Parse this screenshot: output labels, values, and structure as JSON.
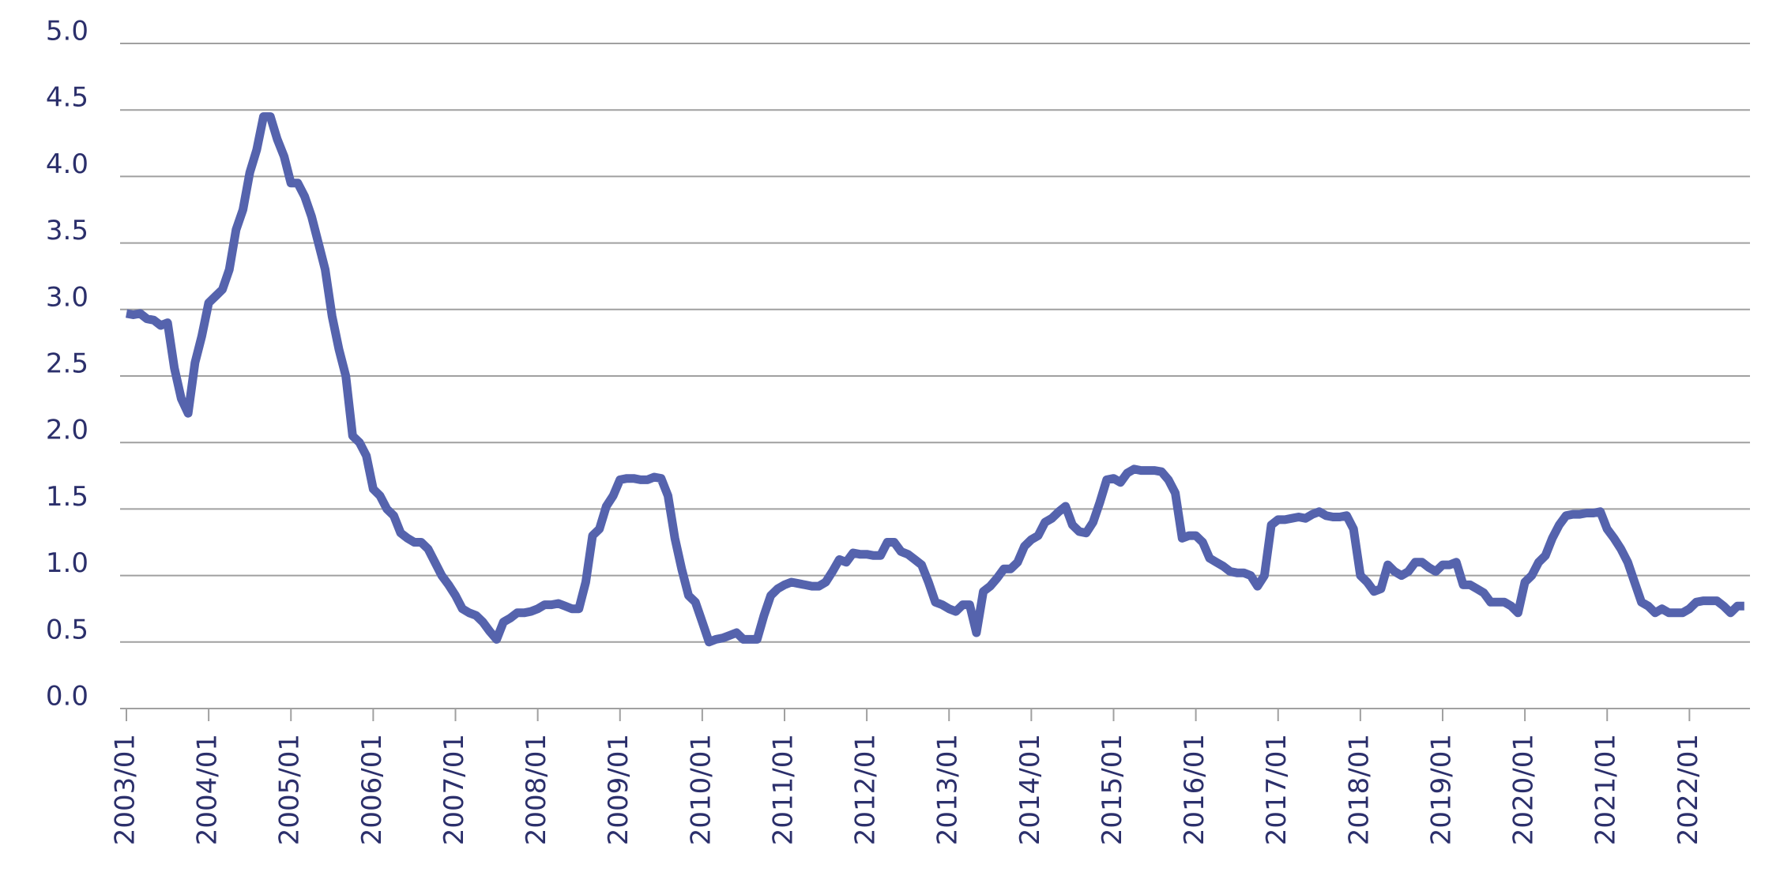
{
  "chart_data": {
    "type": "line",
    "categories": [
      "2003/01",
      null,
      null,
      null,
      null,
      null,
      null,
      null,
      null,
      null,
      null,
      null,
      "2004/01",
      null,
      null,
      null,
      null,
      null,
      null,
      null,
      null,
      null,
      null,
      null,
      "2005/01",
      null,
      null,
      null,
      null,
      null,
      null,
      null,
      null,
      null,
      null,
      null,
      "2006/01",
      null,
      null,
      null,
      null,
      null,
      null,
      null,
      null,
      null,
      null,
      null,
      "2007/01",
      null,
      null,
      null,
      null,
      null,
      null,
      null,
      null,
      null,
      null,
      null,
      "2008/01",
      null,
      null,
      null,
      null,
      null,
      null,
      null,
      null,
      null,
      null,
      null,
      "2009/01",
      null,
      null,
      null,
      null,
      null,
      null,
      null,
      null,
      null,
      null,
      null,
      "2010/01",
      null,
      null,
      null,
      null,
      null,
      null,
      null,
      null,
      null,
      null,
      null,
      "2011/01",
      null,
      null,
      null,
      null,
      null,
      null,
      null,
      null,
      null,
      null,
      null,
      "2012/01",
      null,
      null,
      null,
      null,
      null,
      null,
      null,
      null,
      null,
      null,
      null,
      "2013/01",
      null,
      null,
      null,
      null,
      null,
      null,
      null,
      null,
      null,
      null,
      null,
      "2014/01",
      null,
      null,
      null,
      null,
      null,
      null,
      null,
      null,
      null,
      null,
      null,
      "2015/01",
      null,
      null,
      null,
      null,
      null,
      null,
      null,
      null,
      null,
      null,
      null,
      "2016/01",
      null,
      null,
      null,
      null,
      null,
      null,
      null,
      null,
      null,
      null,
      null,
      "2017/01",
      null,
      null,
      null,
      null,
      null,
      null,
      null,
      null,
      null,
      null,
      null,
      "2018/01",
      null,
      null,
      null,
      null,
      null,
      null,
      null,
      null,
      null,
      null,
      null,
      "2019/01",
      null,
      null,
      null,
      null,
      null,
      null,
      null,
      null,
      null,
      null,
      null,
      "2020/01",
      null,
      null,
      null,
      null,
      null,
      null,
      null,
      null,
      null,
      null,
      null,
      "2021/01",
      null,
      null,
      null,
      null,
      null,
      null,
      null,
      null,
      null,
      null,
      null,
      "2022/01",
      null,
      null,
      null,
      null,
      null,
      null,
      null,
      null
    ],
    "values": [
      2.97,
      2.96,
      2.97,
      2.93,
      2.92,
      2.88,
      2.9,
      2.56,
      2.33,
      2.22,
      2.6,
      2.8,
      3.05,
      3.1,
      3.15,
      3.3,
      3.6,
      3.75,
      4.03,
      4.2,
      4.45,
      4.45,
      4.28,
      4.15,
      3.95,
      3.95,
      3.85,
      3.7,
      3.5,
      3.3,
      2.95,
      2.7,
      2.5,
      2.05,
      2.0,
      1.9,
      1.65,
      1.6,
      1.5,
      1.45,
      1.32,
      1.28,
      1.25,
      1.25,
      1.2,
      1.1,
      1.0,
      0.93,
      0.85,
      0.75,
      0.72,
      0.7,
      0.65,
      0.58,
      0.52,
      0.65,
      0.68,
      0.72,
      0.72,
      0.73,
      0.75,
      0.78,
      0.78,
      0.79,
      0.77,
      0.75,
      0.75,
      0.95,
      1.3,
      1.35,
      1.52,
      1.6,
      1.72,
      1.73,
      1.73,
      1.72,
      1.72,
      1.74,
      1.73,
      1.6,
      1.28,
      1.05,
      0.85,
      0.8,
      0.65,
      0.5,
      0.52,
      0.53,
      0.55,
      0.57,
      0.52,
      0.52,
      0.52,
      0.7,
      0.85,
      0.9,
      0.93,
      0.95,
      0.94,
      0.93,
      0.92,
      0.92,
      0.95,
      1.03,
      1.12,
      1.1,
      1.17,
      1.16,
      1.16,
      1.15,
      1.15,
      1.25,
      1.25,
      1.18,
      1.16,
      1.12,
      1.08,
      0.95,
      0.8,
      0.78,
      0.75,
      0.73,
      0.78,
      0.78,
      0.57,
      0.88,
      0.92,
      0.98,
      1.05,
      1.05,
      1.1,
      1.22,
      1.27,
      1.3,
      1.4,
      1.43,
      1.48,
      1.52,
      1.38,
      1.33,
      1.32,
      1.4,
      1.55,
      1.72,
      1.73,
      1.7,
      1.77,
      1.8,
      1.79,
      1.79,
      1.79,
      1.78,
      1.72,
      1.62,
      1.28,
      1.3,
      1.3,
      1.25,
      1.13,
      1.1,
      1.07,
      1.03,
      1.02,
      1.02,
      1.0,
      0.92,
      1.0,
      1.38,
      1.42,
      1.42,
      1.43,
      1.44,
      1.43,
      1.46,
      1.48,
      1.45,
      1.44,
      1.44,
      1.45,
      1.35,
      1.0,
      0.95,
      0.88,
      0.9,
      1.08,
      1.03,
      1.0,
      1.03,
      1.1,
      1.1,
      1.06,
      1.03,
      1.08,
      1.08,
      1.1,
      0.93,
      0.93,
      0.9,
      0.87,
      0.8,
      0.8,
      0.8,
      0.77,
      0.72,
      0.95,
      1.0,
      1.1,
      1.15,
      1.28,
      1.38,
      1.45,
      1.46,
      1.46,
      1.47,
      1.47,
      1.48,
      1.35,
      1.28,
      1.2,
      1.1,
      0.95,
      0.8,
      0.77,
      0.72,
      0.75,
      0.72,
      0.72,
      0.72,
      0.75,
      0.8,
      0.81,
      0.81,
      0.81,
      0.77,
      0.72,
      0.77,
      0.77
    ],
    "color": "#5563ad",
    "ylim": [
      0,
      5
    ],
    "yticks": [
      {
        "value": 0,
        "label": "0.0"
      },
      {
        "value": 0.5,
        "label": "0.5"
      },
      {
        "value": 1,
        "label": "1.0"
      },
      {
        "value": 1.5,
        "label": "1.5"
      },
      {
        "value": 2,
        "label": "2.0"
      },
      {
        "value": 2.5,
        "label": "2.5"
      },
      {
        "value": 3,
        "label": "3.0"
      },
      {
        "value": 3.5,
        "label": "3.5"
      },
      {
        "value": 4,
        "label": "4.0"
      },
      {
        "value": 4.5,
        "label": "4.5"
      },
      {
        "value": 5,
        "label": "5.0"
      }
    ],
    "grid": true
  }
}
